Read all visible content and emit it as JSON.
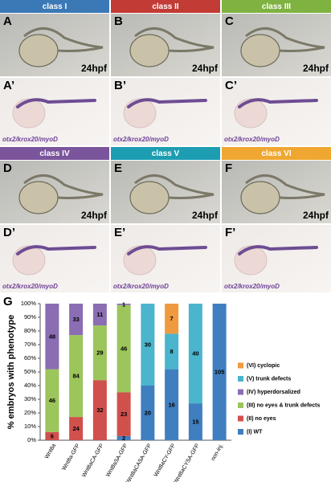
{
  "panels": [
    {
      "header": "class I",
      "color": "#3a78b6",
      "top": {
        "letter": "A",
        "stage": "24hpf"
      },
      "bottom": {
        "letter": "A’",
        "probe": "otx2/krox20/myoD"
      }
    },
    {
      "header": "class II",
      "color": "#c23b34",
      "top": {
        "letter": "B",
        "stage": "24hpf"
      },
      "bottom": {
        "letter": "B’",
        "probe": "otx2/krox20/myoD"
      }
    },
    {
      "header": "class III",
      "color": "#7fb240",
      "top": {
        "letter": "C",
        "stage": "24hpf"
      },
      "bottom": {
        "letter": "C’",
        "probe": "otx2/krox20/myoD"
      }
    },
    {
      "header": "class IV",
      "color": "#7b559c",
      "top": {
        "letter": "D",
        "stage": "24hpf"
      },
      "bottom": {
        "letter": "D’",
        "probe": "otx2/krox20/myoD"
      }
    },
    {
      "header": "class V",
      "color": "#1d9db2",
      "top": {
        "letter": "E",
        "stage": "24hpf"
      },
      "bottom": {
        "letter": "E’",
        "probe": "otx2/krox20/myoD"
      }
    },
    {
      "header": "class VI",
      "color": "#efa732",
      "top": {
        "letter": "F",
        "stage": "24hpf"
      },
      "bottom": {
        "letter": "F’",
        "probe": "otx2/krox20/myoD"
      }
    }
  ],
  "chart_data": {
    "type": "bar",
    "stacked": true,
    "panel_letter": "G",
    "y_label": "% embryos with phenotype",
    "categories": [
      "Wnt8a",
      "Wnt8a-GFP",
      "Wnt8aCA-GFP",
      "Wnt8aSA-GFP",
      "Wnt8aCASA-GFP",
      "Wnt8aCY-GFP",
      "Wnt8aCYSA-GFP",
      "non-inj."
    ],
    "series": [
      {
        "name": "(I) WT",
        "color": "#3f7fc0",
        "values": [
          null,
          null,
          null,
          3,
          40,
          52,
          27,
          100
        ],
        "counts": [
          null,
          null,
          null,
          2,
          20,
          16,
          15,
          105
        ]
      },
      {
        "name": "(II) no eyes",
        "color": "#d0504c",
        "values": [
          6,
          17,
          44,
          32,
          null,
          null,
          null,
          null
        ],
        "counts": [
          6,
          24,
          32,
          23,
          null,
          null,
          null,
          null
        ]
      },
      {
        "name": "(III) no eyes & trunk defects",
        "color": "#9cc55c",
        "values": [
          46,
          60,
          40,
          64,
          null,
          null,
          null,
          null
        ],
        "counts": [
          46,
          84,
          29,
          46,
          null,
          null,
          null,
          null
        ]
      },
      {
        "name": "(IV) hyperdorsalized",
        "color": "#8a6db3",
        "values": [
          48,
          23,
          16,
          1,
          null,
          null,
          null,
          null
        ],
        "counts": [
          48,
          33,
          11,
          1,
          null,
          null,
          null,
          null
        ]
      },
      {
        "name": "(V) trunk defects",
        "color": "#4bb5cd",
        "values": [
          null,
          null,
          null,
          null,
          60,
          26,
          73,
          null
        ],
        "counts": [
          null,
          null,
          null,
          null,
          30,
          8,
          40,
          null
        ]
      },
      {
        "name": "(VI) cyclopic",
        "color": "#ef9a3e",
        "values": [
          null,
          null,
          null,
          null,
          null,
          22,
          null,
          null
        ],
        "counts": [
          null,
          null,
          null,
          null,
          null,
          7,
          null,
          null
        ]
      }
    ],
    "ylim": [
      0,
      100
    ],
    "yticks": [
      {
        "value": 0,
        "label": "0%"
      },
      {
        "value": 10,
        "label": "10%"
      },
      {
        "value": 20,
        "label": "20%"
      },
      {
        "value": 30,
        "label": "30%"
      },
      {
        "value": 40,
        "label": "40%"
      },
      {
        "value": 50,
        "label": "50%"
      },
      {
        "value": 60,
        "label": "60%"
      },
      {
        "value": 70,
        "label": "70%"
      },
      {
        "value": 80,
        "label": "80%"
      },
      {
        "value": 90,
        "label": "90%"
      },
      {
        "value": 100,
        "label": "100%"
      }
    ],
    "grid": false
  }
}
